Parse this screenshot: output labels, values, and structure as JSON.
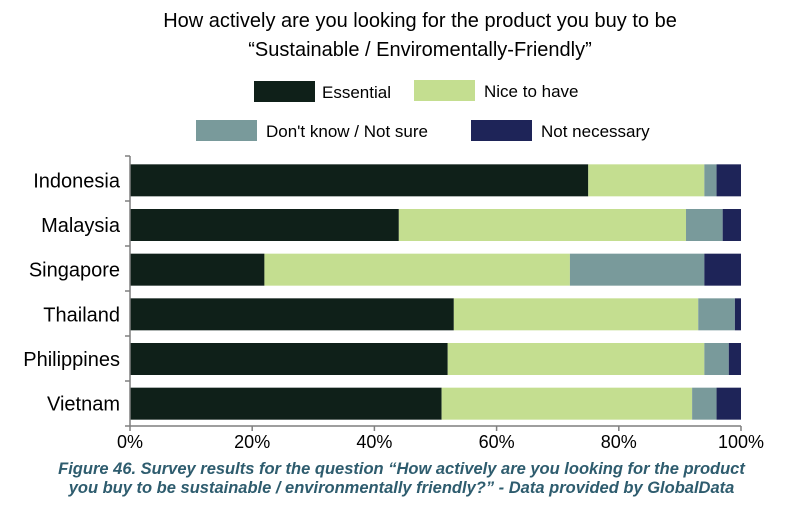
{
  "chart_data": {
    "type": "bar",
    "orientation": "horizontal",
    "stacked": true,
    "title_lines": [
      "How actively are you looking for the product you buy to be",
      "“Sustainable / Enviromentally-Friendly”"
    ],
    "categories": [
      "Indonesia",
      "Malaysia",
      "Singapore",
      "Thailand",
      "Philippines",
      "Vietnam"
    ],
    "series": [
      {
        "name": "Essential",
        "color": "#0f2019",
        "values": [
          75,
          44,
          22,
          53,
          52,
          51
        ]
      },
      {
        "name": "Nice to have",
        "color": "#c4de90",
        "values": [
          19,
          47,
          50,
          40,
          42,
          41
        ]
      },
      {
        "name": "Don't know / Not sure",
        "color": "#799a9b",
        "values": [
          2,
          6,
          22,
          6,
          4,
          4
        ]
      },
      {
        "name": "Not necessary",
        "color": "#1e2458",
        "values": [
          4,
          3,
          6,
          1,
          2,
          4
        ]
      }
    ],
    "x_ticks": [
      "0%",
      "20%",
      "40%",
      "60%",
      "80%",
      "100%"
    ],
    "xlim": [
      0,
      100
    ],
    "legend_position": "top",
    "grid": false
  },
  "caption": {
    "line1": "Figure 46.  Survey results for the question “How actively are you looking for the product",
    "line2": "you buy to be sustainable / environmentally friendly?” - Data provided by GlobalData"
  }
}
